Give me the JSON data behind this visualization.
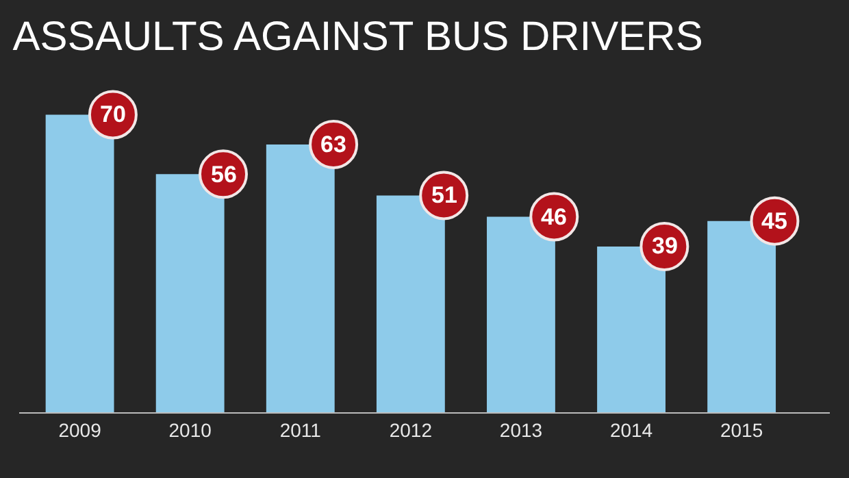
{
  "chart_data": {
    "type": "bar",
    "title": "ASSAULTS AGAINST BUS DRIVERS",
    "categories": [
      "2009",
      "2010",
      "2011",
      "2012",
      "2013",
      "2014",
      "2015"
    ],
    "values": [
      70,
      56,
      63,
      51,
      46,
      39,
      45
    ],
    "color": "#8ecbea",
    "data_labels": true
  }
}
